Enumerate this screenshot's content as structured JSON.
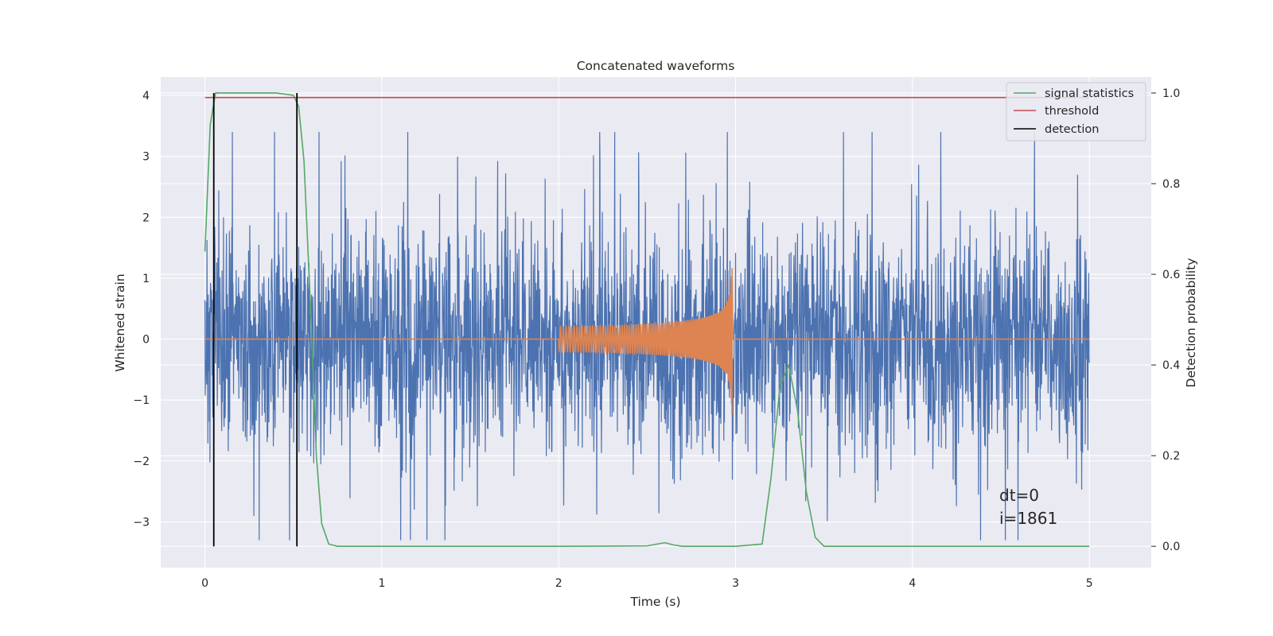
{
  "chart_data": {
    "type": "line",
    "title": "Concatenated waveforms",
    "xlabel": "Time (s)",
    "ylabel": "Whitened strain",
    "ylabel_right": "Detection probability",
    "xlim": [
      -0.25,
      5.35
    ],
    "ylim": [
      -3.75,
      4.3
    ],
    "ylim_right": [
      -0.047,
      1.035
    ],
    "x_ticks": [
      "0",
      "1",
      "2",
      "3",
      "4",
      "5"
    ],
    "y_ticks": [
      "4",
      "3",
      "2",
      "1",
      "0",
      "−1",
      "−2",
      "−3"
    ],
    "y_ticks_right": [
      "1.0",
      "0.8",
      "0.6",
      "0.4",
      "0.2",
      "0.0"
    ],
    "grid": true,
    "legend_position": "top-right",
    "legend": [
      "signal statistics",
      "threshold",
      "detection"
    ],
    "annotations": [
      "dt=0",
      "i=1861"
    ],
    "colors": {
      "noise": "#4c72b0",
      "waveform": "#dd8452",
      "signal": "#55a868",
      "threshold": "#c44e52",
      "detection": "#000000",
      "background": "#eaeaf2",
      "grid": "#ffffff"
    },
    "series": [
      {
        "id": "noise",
        "axis": "left",
        "description_free": true,
        "x_range": [
          0,
          5
        ],
        "amplitude_envelope": 2.3
      },
      {
        "id": "waveform",
        "axis": "left",
        "x_range": [
          2.0,
          2.98
        ],
        "start_amplitude": 0.2,
        "peak_amplitude": 1.3
      },
      {
        "name": "signal statistics",
        "axis": "right",
        "x": [
          0,
          0.03,
          0.06,
          0.1,
          0.2,
          0.3,
          0.4,
          0.5,
          0.53,
          0.56,
          0.6,
          0.63,
          0.66,
          0.7,
          0.75,
          1.0,
          2.0,
          2.5,
          2.6,
          2.65,
          2.7,
          3.0,
          3.15,
          3.2,
          3.25,
          3.3,
          3.35,
          3.4,
          3.45,
          3.5,
          4.0,
          5.0
        ],
        "y": [
          0.65,
          0.93,
          1.0,
          1.0,
          1.0,
          1.0,
          1.0,
          0.995,
          0.97,
          0.85,
          0.5,
          0.2,
          0.05,
          0.005,
          0.0,
          0.0,
          0.0,
          0.001,
          0.008,
          0.003,
          0.0,
          0.0,
          0.005,
          0.15,
          0.35,
          0.4,
          0.3,
          0.12,
          0.02,
          0.0,
          0.0,
          0.0
        ]
      },
      {
        "name": "threshold",
        "axis": "right",
        "x": [
          0,
          5
        ],
        "y": [
          0.99,
          0.99
        ]
      },
      {
        "name": "detection",
        "axis": "right",
        "x_positions": [
          0.05,
          0.52
        ],
        "y_range": [
          0.0,
          1.0
        ]
      }
    ]
  }
}
